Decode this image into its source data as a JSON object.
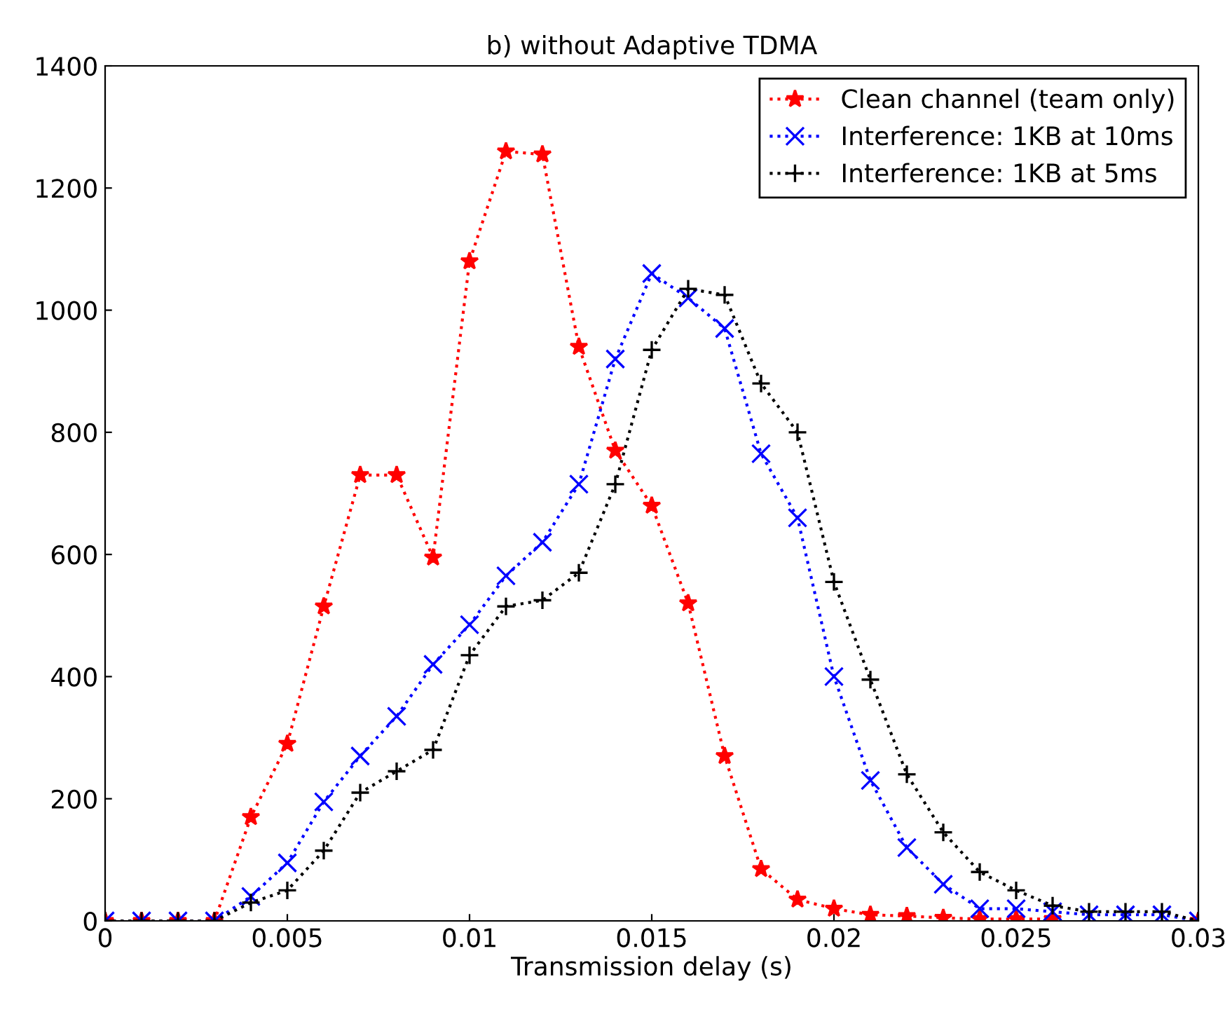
{
  "chart_data": {
    "type": "line",
    "title": "b) without Adaptive TDMA",
    "xlabel": "Transmission delay (s)",
    "x": [
      0,
      0.001,
      0.002,
      0.003,
      0.004,
      0.005,
      0.006,
      0.007,
      0.008,
      0.009,
      0.01,
      0.011,
      0.012,
      0.013,
      0.014,
      0.015,
      0.016,
      0.017,
      0.018,
      0.019,
      0.02,
      0.021,
      0.022,
      0.023,
      0.024,
      0.025,
      0.026,
      0.027,
      0.028,
      0.029,
      0.03
    ],
    "series": [
      {
        "name": "Clean channel (team only)",
        "color": "#ff0000",
        "marker": "star",
        "values": [
          0,
          0,
          0,
          0,
          170,
          290,
          515,
          730,
          730,
          595,
          1080,
          1260,
          1255,
          940,
          770,
          680,
          520,
          270,
          85,
          35,
          20,
          10,
          8,
          5,
          3,
          3,
          3,
          null,
          null,
          null,
          0
        ]
      },
      {
        "name": "Interference: 1KB at 10ms",
        "color": "#0000ff",
        "marker": "cross",
        "values": [
          0,
          0,
          0,
          0,
          40,
          95,
          195,
          270,
          335,
          420,
          485,
          565,
          620,
          715,
          920,
          1060,
          1020,
          970,
          765,
          660,
          400,
          230,
          120,
          60,
          20,
          20,
          15,
          10,
          10,
          10,
          0
        ]
      },
      {
        "name": "Interference: 1KB at 5ms",
        "color": "#000000",
        "marker": "plus",
        "values": [
          0,
          0,
          0,
          0,
          30,
          50,
          115,
          210,
          245,
          280,
          435,
          515,
          525,
          570,
          715,
          935,
          1035,
          1025,
          880,
          800,
          555,
          395,
          240,
          145,
          80,
          50,
          25,
          15,
          15,
          15,
          0
        ]
      }
    ],
    "xlim": [
      0,
      0.03
    ],
    "xticks": [
      0,
      0.005,
      0.01,
      0.015,
      0.02,
      0.025,
      0.03
    ],
    "ylim": [
      0,
      1400
    ],
    "yticks": [
      0,
      200,
      400,
      600,
      800,
      1000,
      1200,
      1400
    ],
    "grid": false,
    "legend": "top right",
    "line_style": "dotted"
  }
}
